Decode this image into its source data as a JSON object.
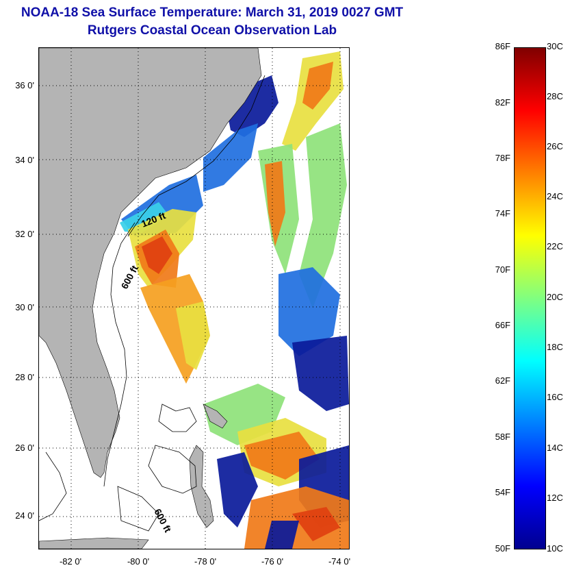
{
  "title": {
    "line1": "NOAA-18 Sea Surface Temperature:  March 31, 2019 0027 GMT",
    "line2": "Rutgers Coastal Ocean Observation Lab"
  },
  "map": {
    "lat_labels": [
      "36 0'",
      "34 0'",
      "32 0'",
      "30 0'",
      "28 0'",
      "26 0'",
      "24 0'"
    ],
    "lon_labels": [
      "-82 0'",
      "-80 0'",
      "-78 0'",
      "-76 0'",
      "-74 0'"
    ],
    "isobath_labels": [
      "120 ft",
      "600 ft",
      "600 ft"
    ],
    "land_color": "#b4b4b4",
    "colors": {
      "cold": "#0a1a9a",
      "cool": "#1f6fe0",
      "cyan": "#3ad0e8",
      "green": "#8ee27a",
      "yellow": "#e8e040",
      "warm": "#f5a020",
      "orange": "#f07a18",
      "hot": "#e04010"
    }
  },
  "colorbar": {
    "f_labels": [
      "86F",
      "82F",
      "78F",
      "74F",
      "70F",
      "66F",
      "62F",
      "58F",
      "54F",
      "50F"
    ],
    "c_labels": [
      "30C",
      "28C",
      "26C",
      "24C",
      "22C",
      "20C",
      "18C",
      "16C",
      "14C",
      "12C",
      "10C"
    ],
    "gradient": [
      "#00008f",
      "#0000ff",
      "#0080ff",
      "#00ffff",
      "#80ff80",
      "#ffff00",
      "#ff8000",
      "#ff0000",
      "#800000"
    ]
  }
}
